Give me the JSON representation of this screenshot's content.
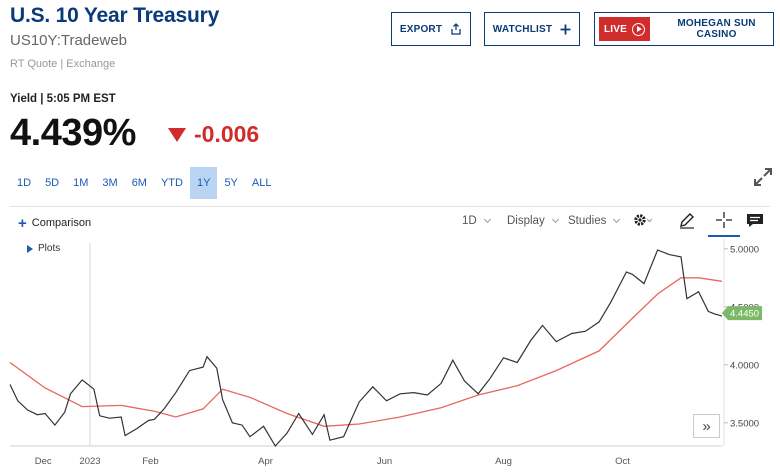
{
  "header": {
    "title": "U.S. 10 Year Treasury",
    "symbol": "US10Y:Tradeweb",
    "quote_meta": "RT Quote | Exchange"
  },
  "actions": {
    "export_label": "EXPORT",
    "watchlist_label": "WATCHLIST",
    "live_label": "LIVE",
    "live_sponsor": "MOHEGAN SUN CASINO"
  },
  "quote": {
    "yield_label": "Yield | 5:05 PM EST",
    "price": "4.439%",
    "change": "-0.006"
  },
  "ranges": [
    {
      "label": "1D",
      "active": false
    },
    {
      "label": "5D",
      "active": false
    },
    {
      "label": "1M",
      "active": false
    },
    {
      "label": "3M",
      "active": false
    },
    {
      "label": "6M",
      "active": false
    },
    {
      "label": "YTD",
      "active": false
    },
    {
      "label": "1Y",
      "active": true
    },
    {
      "label": "5Y",
      "active": false
    },
    {
      "label": "ALL",
      "active": false
    }
  ],
  "toolbar": {
    "comparison": "Comparison",
    "interval": "1D",
    "display": "Display",
    "studies": "Studies",
    "plots": "Plots"
  },
  "colors": {
    "brand": "#0a3a78",
    "link": "#1a5bb5",
    "down": "#d12c2c",
    "price_line": "#333333",
    "moving_average": "#e8675e",
    "last_badge": "#7cb868"
  },
  "chart_data": {
    "type": "line",
    "x_ticks": [
      "Dec",
      "2023",
      "Feb",
      "Apr",
      "Jun",
      "Aug",
      "Oct"
    ],
    "y_ticks": [
      "5.0000",
      "4.5000",
      "4.0000",
      "3.5000"
    ],
    "ylim": [
      3.3,
      5.05
    ],
    "last_value": "4.4450",
    "series": [
      {
        "role": "price",
        "x": [
          "2022-11-21",
          "2022-11-25",
          "2022-11-30",
          "2022-12-05",
          "2022-12-09",
          "2022-12-14",
          "2022-12-19",
          "2022-12-22",
          "2022-12-28",
          "2023-01-03",
          "2023-01-06",
          "2023-01-11",
          "2023-01-17",
          "2023-01-19",
          "2023-01-25",
          "2023-01-31",
          "2023-02-03",
          "2023-02-08",
          "2023-02-14",
          "2023-02-21",
          "2023-02-28",
          "2023-03-02",
          "2023-03-07",
          "2023-03-10",
          "2023-03-15",
          "2023-03-20",
          "2023-03-24",
          "2023-03-31",
          "2023-04-06",
          "2023-04-12",
          "2023-04-18",
          "2023-04-25",
          "2023-05-01",
          "2023-05-04",
          "2023-05-11",
          "2023-05-19",
          "2023-05-26",
          "2023-06-02",
          "2023-06-09",
          "2023-06-16",
          "2023-06-23",
          "2023-06-30",
          "2023-07-06",
          "2023-07-12",
          "2023-07-19",
          "2023-07-25",
          "2023-08-01",
          "2023-08-08",
          "2023-08-15",
          "2023-08-21",
          "2023-08-28",
          "2023-09-05",
          "2023-09-12",
          "2023-09-19",
          "2023-09-25",
          "2023-10-03",
          "2023-10-06",
          "2023-10-12",
          "2023-10-19",
          "2023-10-25",
          "2023-10-31",
          "2023-11-03",
          "2023-11-09",
          "2023-11-14",
          "2023-11-17",
          "2023-11-21"
        ],
        "values": [
          3.83,
          3.69,
          3.61,
          3.57,
          3.58,
          3.48,
          3.59,
          3.75,
          3.87,
          3.79,
          3.56,
          3.54,
          3.55,
          3.39,
          3.45,
          3.52,
          3.53,
          3.62,
          3.76,
          3.95,
          3.98,
          4.07,
          3.97,
          3.7,
          3.5,
          3.48,
          3.38,
          3.47,
          3.3,
          3.41,
          3.58,
          3.4,
          3.57,
          3.35,
          3.38,
          3.68,
          3.81,
          3.69,
          3.75,
          3.76,
          3.74,
          3.84,
          4.04,
          3.86,
          3.75,
          3.88,
          4.06,
          4.02,
          4.21,
          4.34,
          4.2,
          4.27,
          4.29,
          4.37,
          4.54,
          4.8,
          4.78,
          4.7,
          4.99,
          4.95,
          4.93,
          4.57,
          4.63,
          4.46,
          4.44,
          4.42
        ]
      },
      {
        "role": "moving_average",
        "x": [
          "2022-11-21",
          "2022-12-09",
          "2022-12-28",
          "2023-01-17",
          "2023-02-03",
          "2023-02-14",
          "2023-02-28",
          "2023-03-10",
          "2023-03-24",
          "2023-04-12",
          "2023-05-01",
          "2023-05-19",
          "2023-06-09",
          "2023-06-30",
          "2023-07-19",
          "2023-08-08",
          "2023-08-28",
          "2023-09-19",
          "2023-10-06",
          "2023-10-19",
          "2023-10-31",
          "2023-11-09",
          "2023-11-21"
        ],
        "values": [
          4.02,
          3.8,
          3.64,
          3.65,
          3.6,
          3.55,
          3.62,
          3.79,
          3.72,
          3.58,
          3.47,
          3.49,
          3.55,
          3.63,
          3.74,
          3.82,
          3.95,
          4.12,
          4.4,
          4.61,
          4.75,
          4.75,
          4.72
        ]
      }
    ]
  }
}
